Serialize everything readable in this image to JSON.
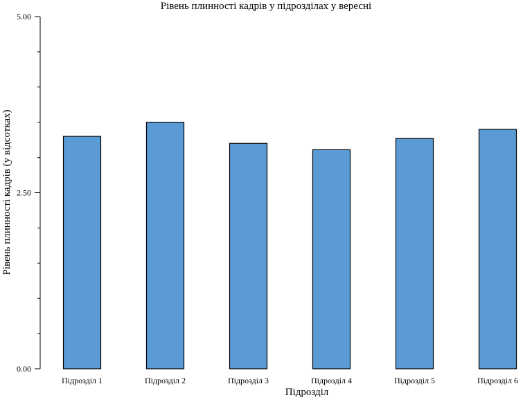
{
  "chart_data": {
    "type": "bar",
    "title": "Рівень плинності кадрів у підрозділах у вересні",
    "xlabel": "Підрозділ",
    "ylabel": "Рівень плинності кадрів (у відсотках)",
    "categories": [
      "Підрозділ 1",
      "Підрозділ 2",
      "Підрозділ 3",
      "Підрозділ 4",
      "Підрозділ 5",
      "Підрозділ 6"
    ],
    "values": [
      3.3,
      3.5,
      3.2,
      3.11,
      3.27,
      3.4
    ],
    "ylim": [
      0,
      5
    ],
    "yticks_labeled": [
      "0.00",
      "2.50",
      "5.00"
    ],
    "ytick_values_labeled": [
      0,
      2.5,
      5
    ],
    "ytick_values_minor": [
      0.5,
      1.0,
      1.5,
      2.0,
      3.0,
      3.5,
      4.0,
      4.5
    ],
    "bar_color": "#5b9bd5",
    "bar_edge_color": "#000000",
    "grid": false,
    "legend": "none"
  }
}
